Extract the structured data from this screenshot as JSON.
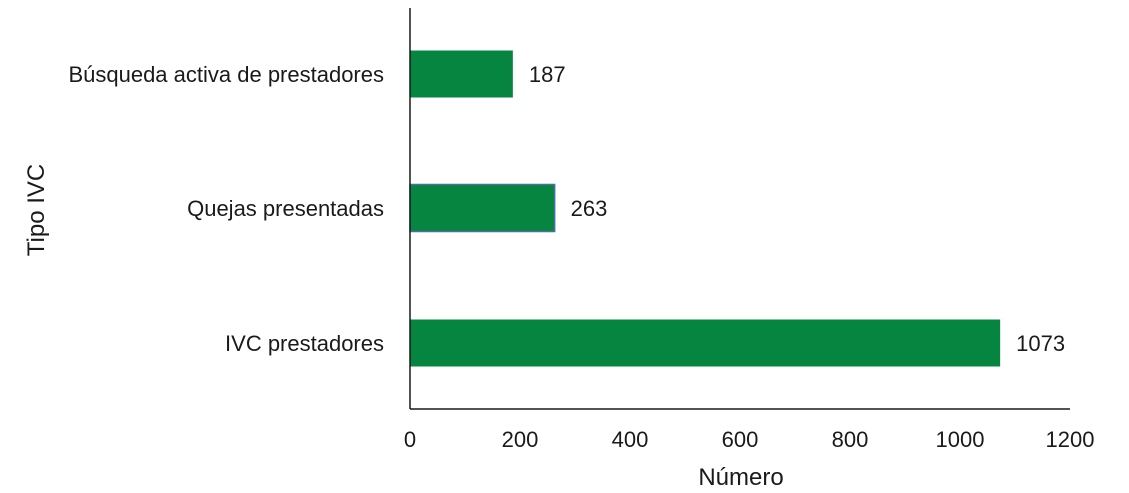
{
  "chart_data": {
    "type": "bar",
    "orientation": "horizontal",
    "categories": [
      "Búsqueda activa de prestadores",
      "Quejas presentadas",
      "IVC prestadores"
    ],
    "values": [
      187,
      263,
      1073
    ],
    "value_labels": [
      "187",
      "263",
      "1073"
    ],
    "title": "",
    "xlabel": "Número",
    "ylabel": "Tipo IVC",
    "xlim": [
      0,
      1200
    ],
    "x_ticks": [
      "0",
      "200",
      "400",
      "600",
      "800",
      "1000",
      "1200"
    ],
    "grid": false,
    "legend": "none",
    "bar_color": "#05853f",
    "highlight_border_color": "#4a6fa5"
  }
}
